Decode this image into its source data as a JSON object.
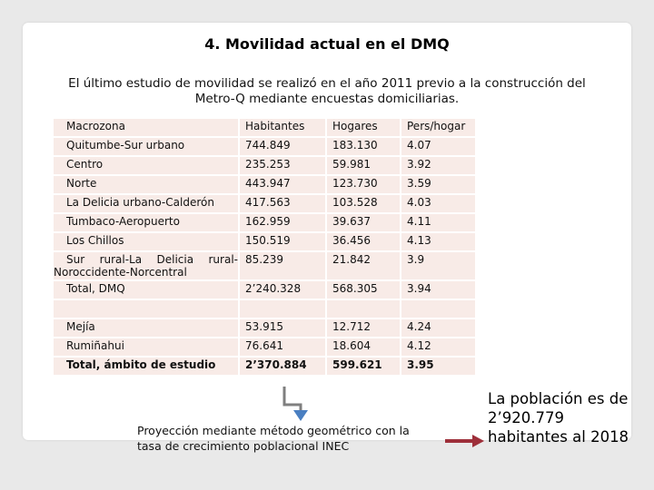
{
  "header": {
    "title": "4. Movilidad actual en el DMQ"
  },
  "intro": "El último estudio de movilidad se realizó en el año 2011 previo a la construcción del Metro-Q mediante encuestas domiciliarias.",
  "table": {
    "header": [
      "Macrozona",
      "Habitantes",
      "Hogares",
      "Pers/hogar"
    ],
    "groups": [
      [
        [
          "Quitumbe-Sur urbano",
          "744.849",
          "183.130",
          "4.07"
        ],
        [
          "Centro",
          "235.253",
          "59.981",
          "3.92"
        ],
        [
          "Norte",
          "443.947",
          "123.730",
          "3.59"
        ],
        [
          "La Delicia urbano-Calderón",
          "417.563",
          "103.528",
          "4.03"
        ],
        [
          "Tumbaco-Aeropuerto",
          "162.959",
          "39.637",
          "4.11"
        ],
        [
          "Los Chillos",
          "150.519",
          "36.456",
          "4.13"
        ],
        [
          "Sur rural-La Delicia rural-Noroccidente-Norcentral",
          "85.239",
          "21.842",
          "3.9"
        ],
        [
          "Total, DMQ",
          "2’240.328",
          "568.305",
          "3.94"
        ]
      ],
      [
        [
          "Mejía",
          "53.915",
          "12.712",
          "4.24"
        ],
        [
          "Rumiñahui",
          "76.641",
          "18.604",
          "4.12"
        ],
        [
          "Total, ámbito de estudio",
          "2’370.884",
          "599.621",
          "3.95"
        ]
      ]
    ]
  },
  "note": "Proyección mediante método geométrico con la tasa de crecimiento poblacional INEC",
  "callout": "La población es de 2’920.779 habitantes al 2018"
}
